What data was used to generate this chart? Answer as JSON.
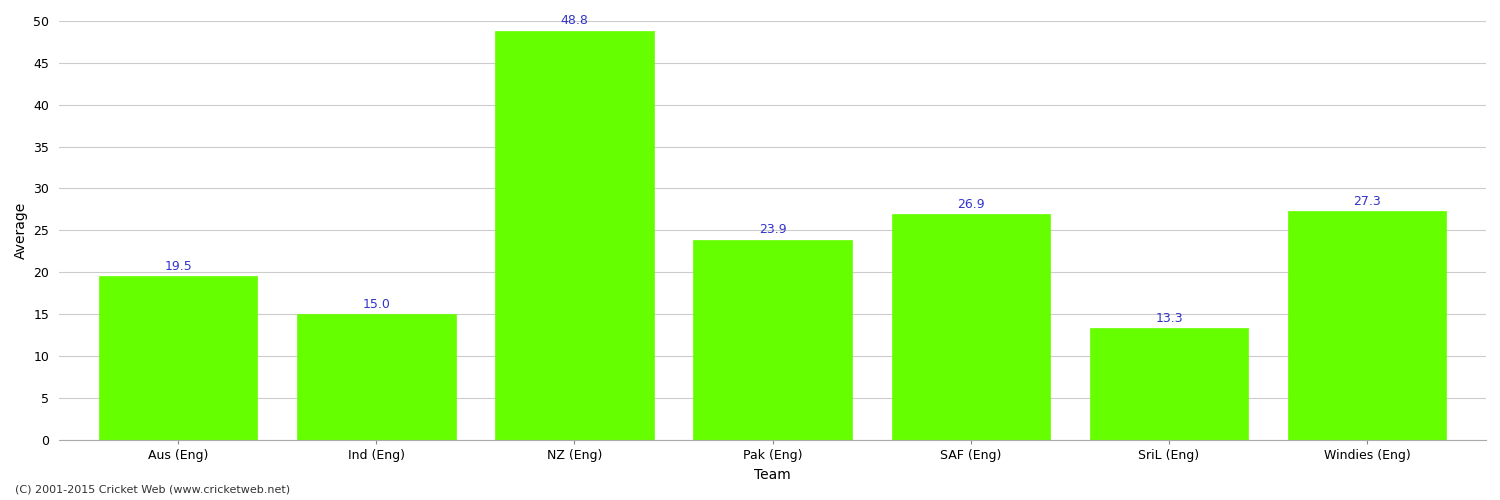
{
  "categories": [
    "Aus (Eng)",
    "Ind (Eng)",
    "NZ (Eng)",
    "Pak (Eng)",
    "SAF (Eng)",
    "SriL (Eng)",
    "Windies (Eng)"
  ],
  "values": [
    19.5,
    15.0,
    48.8,
    23.9,
    26.9,
    13.3,
    27.3
  ],
  "bar_color": "#66ff00",
  "bar_edge_color": "#66ff00",
  "label_color": "#3333cc",
  "ylabel": "Average",
  "xlabel": "Team",
  "ylim": [
    0,
    50
  ],
  "yticks": [
    0,
    5,
    10,
    15,
    20,
    25,
    30,
    35,
    40,
    45,
    50
  ],
  "grid_color": "#cccccc",
  "background_color": "#ffffff",
  "footnote": "(C) 2001-2015 Cricket Web (www.cricketweb.net)",
  "label_fontsize": 9,
  "axis_label_fontsize": 10,
  "tick_fontsize": 9,
  "footnote_fontsize": 8
}
